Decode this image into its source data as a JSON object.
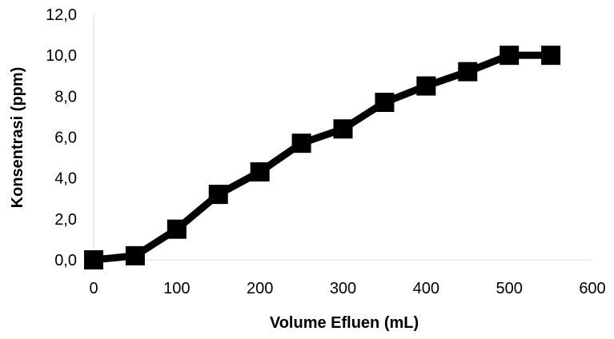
{
  "chart_data": {
    "type": "line",
    "title": "",
    "xlabel": "Volume Efluen (mL)",
    "ylabel": "Konsentrasi (ppm)",
    "xlim": [
      0,
      600
    ],
    "ylim": [
      0,
      12
    ],
    "x_ticks": [
      "0",
      "100",
      "200",
      "300",
      "400",
      "500",
      "600"
    ],
    "y_ticks": [
      "0,0",
      "2,0",
      "4,0",
      "6,0",
      "8,0",
      "10,0",
      "12,0"
    ],
    "grid": false,
    "legend": "none",
    "series": [
      {
        "color": "#000000",
        "marker": "square",
        "x": [
          0,
          50,
          100,
          150,
          200,
          250,
          300,
          350,
          400,
          450,
          500,
          550
        ],
        "y": [
          0.0,
          0.2,
          1.5,
          3.2,
          4.3,
          5.7,
          6.4,
          7.7,
          8.5,
          9.2,
          10.0,
          10.0
        ]
      }
    ]
  }
}
